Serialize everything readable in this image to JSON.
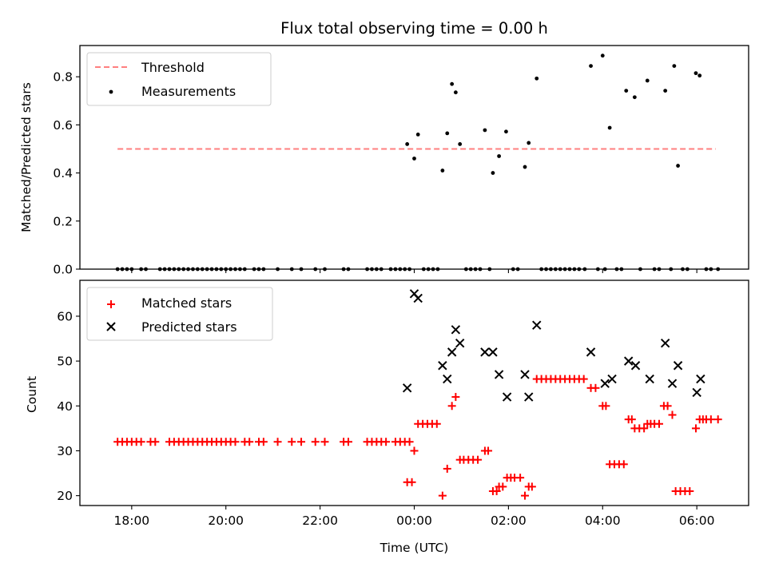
{
  "chart_data": [
    {
      "type": "scatter",
      "title": "Flux total observing time = 0.00 h",
      "xlabel": "",
      "ylabel": "Matched/Predicted stars",
      "xlim": [
        -7.1,
        7.1
      ],
      "ylim": [
        0,
        0.93
      ],
      "y_ticks": [
        "0.0",
        "0.2",
        "0.4",
        "0.6",
        "0.8"
      ],
      "y_tick_values": [
        0,
        0.2,
        0.4,
        0.6,
        0.8
      ],
      "grid": false,
      "legend": "top-left",
      "threshold": {
        "name": "Threshold",
        "value": 0.5,
        "x_range": [
          -6.3,
          6.4
        ],
        "color": "#ff7f7f"
      },
      "series": [
        {
          "name": "Measurements",
          "color": "#000000",
          "points": [
            [
              -6.3,
              0
            ],
            [
              -6.2,
              0
            ],
            [
              -6.1,
              0
            ],
            [
              -6.0,
              0
            ],
            [
              -5.8,
              0
            ],
            [
              -5.7,
              0
            ],
            [
              -5.4,
              0
            ],
            [
              -5.3,
              0
            ],
            [
              -5.2,
              0
            ],
            [
              -5.1,
              0
            ],
            [
              -5.0,
              0
            ],
            [
              -4.9,
              0
            ],
            [
              -4.8,
              0
            ],
            [
              -4.7,
              0
            ],
            [
              -4.6,
              0
            ],
            [
              -4.5,
              0
            ],
            [
              -4.4,
              0
            ],
            [
              -4.3,
              0
            ],
            [
              -4.2,
              0
            ],
            [
              -4.1,
              0
            ],
            [
              -4.0,
              0
            ],
            [
              -3.9,
              0
            ],
            [
              -3.8,
              0
            ],
            [
              -3.7,
              0
            ],
            [
              -3.6,
              0
            ],
            [
              -3.4,
              0
            ],
            [
              -3.3,
              0
            ],
            [
              -3.2,
              0
            ],
            [
              -2.9,
              0
            ],
            [
              -2.6,
              0
            ],
            [
              -2.4,
              0
            ],
            [
              -2.1,
              0
            ],
            [
              -1.9,
              0
            ],
            [
              -1.5,
              0
            ],
            [
              -1.4,
              0
            ],
            [
              -1.0,
              0
            ],
            [
              -0.9,
              0
            ],
            [
              -0.8,
              0
            ],
            [
              -0.7,
              0
            ],
            [
              -0.5,
              0
            ],
            [
              -0.4,
              0
            ],
            [
              -0.3,
              0
            ],
            [
              -0.2,
              0
            ],
            [
              -0.1,
              0
            ],
            [
              -0.15,
              0.52
            ],
            [
              0.0,
              0.46
            ],
            [
              0.08,
              0.56
            ],
            [
              0.2,
              0
            ],
            [
              0.3,
              0
            ],
            [
              0.4,
              0
            ],
            [
              0.5,
              0
            ],
            [
              0.6,
              0.41
            ],
            [
              0.7,
              0.565
            ],
            [
              0.8,
              0.77
            ],
            [
              0.88,
              0.735
            ],
            [
              0.97,
              0.52
            ],
            [
              1.1,
              0
            ],
            [
              1.2,
              0
            ],
            [
              1.3,
              0
            ],
            [
              1.4,
              0
            ],
            [
              1.5,
              0.578
            ],
            [
              1.6,
              0
            ],
            [
              1.67,
              0.4
            ],
            [
              1.8,
              0.47
            ],
            [
              1.95,
              0.572
            ],
            [
              2.1,
              0
            ],
            [
              2.2,
              0
            ],
            [
              2.35,
              0.425
            ],
            [
              2.43,
              0.525
            ],
            [
              2.6,
              0.793
            ],
            [
              2.7,
              0
            ],
            [
              2.8,
              0
            ],
            [
              2.9,
              0
            ],
            [
              3.0,
              0
            ],
            [
              3.1,
              0
            ],
            [
              3.2,
              0
            ],
            [
              3.3,
              0
            ],
            [
              3.4,
              0
            ],
            [
              3.5,
              0
            ],
            [
              3.62,
              0
            ],
            [
              3.75,
              0.845
            ],
            [
              3.9,
              0
            ],
            [
              4.0,
              0.888
            ],
            [
              4.05,
              0
            ],
            [
              4.15,
              0.588
            ],
            [
              4.3,
              0
            ],
            [
              4.4,
              0
            ],
            [
              4.5,
              0.742
            ],
            [
              4.68,
              0.715
            ],
            [
              4.8,
              0
            ],
            [
              4.95,
              0.784
            ],
            [
              5.1,
              0
            ],
            [
              5.2,
              0
            ],
            [
              5.33,
              0.742
            ],
            [
              5.45,
              0
            ],
            [
              5.52,
              0.845
            ],
            [
              5.6,
              0.43
            ],
            [
              5.7,
              0
            ],
            [
              5.8,
              0
            ],
            [
              5.98,
              0.815
            ],
            [
              6.06,
              0.805
            ],
            [
              6.2,
              0
            ],
            [
              6.3,
              0
            ],
            [
              6.45,
              0
            ]
          ]
        }
      ]
    },
    {
      "type": "scatter",
      "title": "",
      "xlabel": "Time (UTC)",
      "ylabel": "Count",
      "xlim": [
        -7.1,
        7.1
      ],
      "ylim": [
        17.8,
        68
      ],
      "x_ticks": [
        "18:00",
        "20:00",
        "22:00",
        "00:00",
        "02:00",
        "04:00",
        "06:00"
      ],
      "x_tick_values": [
        -6,
        -4,
        -2,
        0,
        2,
        4,
        6
      ],
      "y_ticks": [
        "20",
        "30",
        "40",
        "50",
        "60"
      ],
      "y_tick_values": [
        20,
        30,
        40,
        50,
        60
      ],
      "grid": false,
      "legend": "top-left",
      "series": [
        {
          "name": "Matched stars",
          "color": "#ff0000",
          "marker": "plus",
          "points": [
            [
              -6.3,
              32
            ],
            [
              -6.2,
              32
            ],
            [
              -6.1,
              32
            ],
            [
              -6.0,
              32
            ],
            [
              -5.9,
              32
            ],
            [
              -5.8,
              32
            ],
            [
              -5.6,
              32
            ],
            [
              -5.5,
              32
            ],
            [
              -5.2,
              32
            ],
            [
              -5.1,
              32
            ],
            [
              -5.0,
              32
            ],
            [
              -4.9,
              32
            ],
            [
              -4.8,
              32
            ],
            [
              -4.7,
              32
            ],
            [
              -4.6,
              32
            ],
            [
              -4.5,
              32
            ],
            [
              -4.4,
              32
            ],
            [
              -4.3,
              32
            ],
            [
              -4.2,
              32
            ],
            [
              -4.1,
              32
            ],
            [
              -4.0,
              32
            ],
            [
              -3.9,
              32
            ],
            [
              -3.8,
              32
            ],
            [
              -3.6,
              32
            ],
            [
              -3.5,
              32
            ],
            [
              -3.3,
              32
            ],
            [
              -3.2,
              32
            ],
            [
              -2.9,
              32
            ],
            [
              -2.6,
              32
            ],
            [
              -2.4,
              32
            ],
            [
              -2.1,
              32
            ],
            [
              -1.9,
              32
            ],
            [
              -1.5,
              32
            ],
            [
              -1.4,
              32
            ],
            [
              -1.0,
              32
            ],
            [
              -0.9,
              32
            ],
            [
              -0.8,
              32
            ],
            [
              -0.7,
              32
            ],
            [
              -0.6,
              32
            ],
            [
              -0.4,
              32
            ],
            [
              -0.3,
              32
            ],
            [
              -0.2,
              32
            ],
            [
              -0.1,
              32
            ],
            [
              -0.15,
              23
            ],
            [
              -0.05,
              23
            ],
            [
              0.0,
              30
            ],
            [
              0.08,
              36
            ],
            [
              0.18,
              36
            ],
            [
              0.28,
              36
            ],
            [
              0.38,
              36
            ],
            [
              0.48,
              36
            ],
            [
              0.6,
              20
            ],
            [
              0.7,
              26
            ],
            [
              0.8,
              40
            ],
            [
              0.88,
              42
            ],
            [
              0.97,
              28
            ],
            [
              1.05,
              28
            ],
            [
              1.15,
              28
            ],
            [
              1.25,
              28
            ],
            [
              1.35,
              28
            ],
            [
              1.5,
              30
            ],
            [
              1.57,
              30
            ],
            [
              1.67,
              21
            ],
            [
              1.75,
              21
            ],
            [
              1.8,
              22
            ],
            [
              1.88,
              22
            ],
            [
              1.97,
              24
            ],
            [
              2.05,
              24
            ],
            [
              2.13,
              24
            ],
            [
              2.25,
              24
            ],
            [
              2.35,
              20
            ],
            [
              2.43,
              22
            ],
            [
              2.5,
              22
            ],
            [
              2.6,
              46
            ],
            [
              2.7,
              46
            ],
            [
              2.8,
              46
            ],
            [
              2.9,
              46
            ],
            [
              3.0,
              46
            ],
            [
              3.1,
              46
            ],
            [
              3.2,
              46
            ],
            [
              3.3,
              46
            ],
            [
              3.4,
              46
            ],
            [
              3.5,
              46
            ],
            [
              3.6,
              46
            ],
            [
              3.75,
              44
            ],
            [
              3.85,
              44
            ],
            [
              4.0,
              40
            ],
            [
              4.07,
              40
            ],
            [
              4.15,
              27
            ],
            [
              4.25,
              27
            ],
            [
              4.35,
              27
            ],
            [
              4.45,
              27
            ],
            [
              4.55,
              37
            ],
            [
              4.62,
              37
            ],
            [
              4.68,
              35
            ],
            [
              4.78,
              35
            ],
            [
              4.88,
              35
            ],
            [
              4.95,
              36
            ],
            [
              5.02,
              36
            ],
            [
              5.1,
              36
            ],
            [
              5.2,
              36
            ],
            [
              5.3,
              40
            ],
            [
              5.38,
              40
            ],
            [
              5.48,
              38
            ],
            [
              5.55,
              21
            ],
            [
              5.65,
              21
            ],
            [
              5.75,
              21
            ],
            [
              5.85,
              21
            ],
            [
              5.98,
              35
            ],
            [
              6.06,
              37
            ],
            [
              6.13,
              37
            ],
            [
              6.2,
              37
            ],
            [
              6.3,
              37
            ],
            [
              6.45,
              37
            ]
          ]
        },
        {
          "name": "Predicted stars",
          "color": "#000000",
          "marker": "x",
          "points": [
            [
              -0.15,
              44
            ],
            [
              0.0,
              65
            ],
            [
              0.08,
              64
            ],
            [
              0.6,
              49
            ],
            [
              0.7,
              46
            ],
            [
              0.8,
              52
            ],
            [
              0.88,
              57
            ],
            [
              0.97,
              54
            ],
            [
              1.5,
              52
            ],
            [
              1.67,
              52
            ],
            [
              1.8,
              47
            ],
            [
              1.97,
              42
            ],
            [
              2.35,
              47
            ],
            [
              2.43,
              42
            ],
            [
              2.6,
              58
            ],
            [
              3.75,
              52
            ],
            [
              4.05,
              45
            ],
            [
              4.2,
              46
            ],
            [
              4.55,
              50
            ],
            [
              4.7,
              49
            ],
            [
              5.0,
              46
            ],
            [
              5.33,
              54
            ],
            [
              5.48,
              45
            ],
            [
              5.6,
              49
            ],
            [
              6.0,
              43
            ],
            [
              6.08,
              46
            ]
          ]
        }
      ]
    }
  ]
}
